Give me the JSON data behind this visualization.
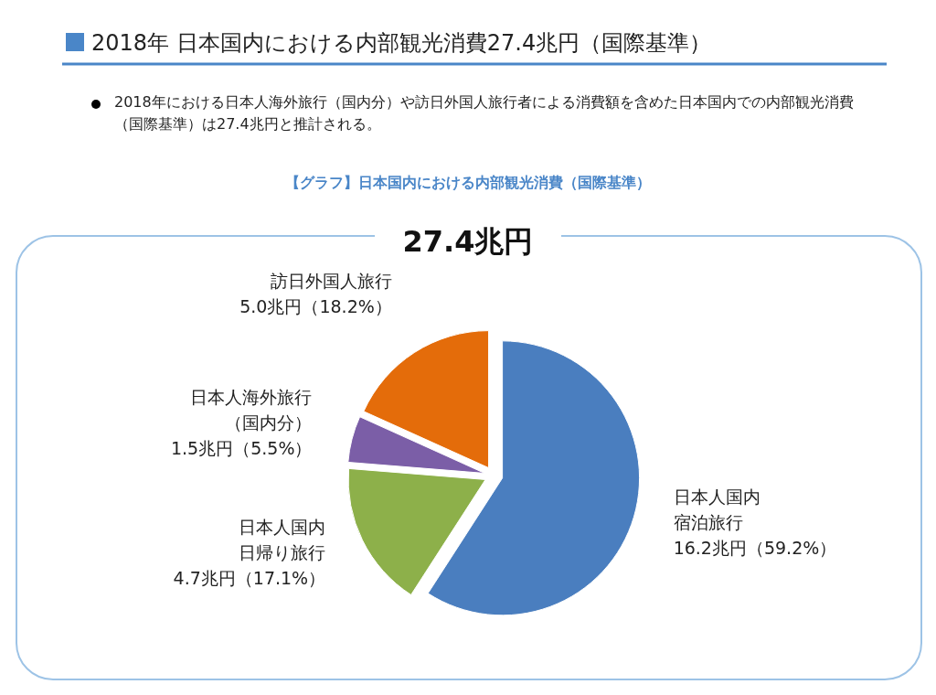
{
  "chart_data": {
    "type": "pie",
    "title": "2018年 日本国内における内部観光消費27.4兆円（国際基準）",
    "subtitle": "2018年における日本人海外旅行（国内分）や訪日外国人旅行者による消費額を含めた日本国内での内部観光消費（国際基準）は27.4兆円と推計される。",
    "annotations": [
      "【グラフ】日本国内における内部観光消費（国際基準）",
      "27.4兆円"
    ],
    "categories": [
      "日本人国内宿泊旅行",
      "日本人国内日帰り旅行",
      "日本人海外旅行（国内分）",
      "訪日外国人旅行"
    ],
    "values": [
      16.2,
      4.7,
      1.5,
      5.0
    ],
    "colors": [
      "#4a7ebf",
      "#8db04a",
      "#7b5ea7",
      "#e46c0a"
    ],
    "value_labels": [
      "16.2兆円（59.2%）",
      "4.7兆円（17.1%）",
      "1.5兆円（5.5%）",
      "5.0兆円（18.2%）"
    ]
  }
}
